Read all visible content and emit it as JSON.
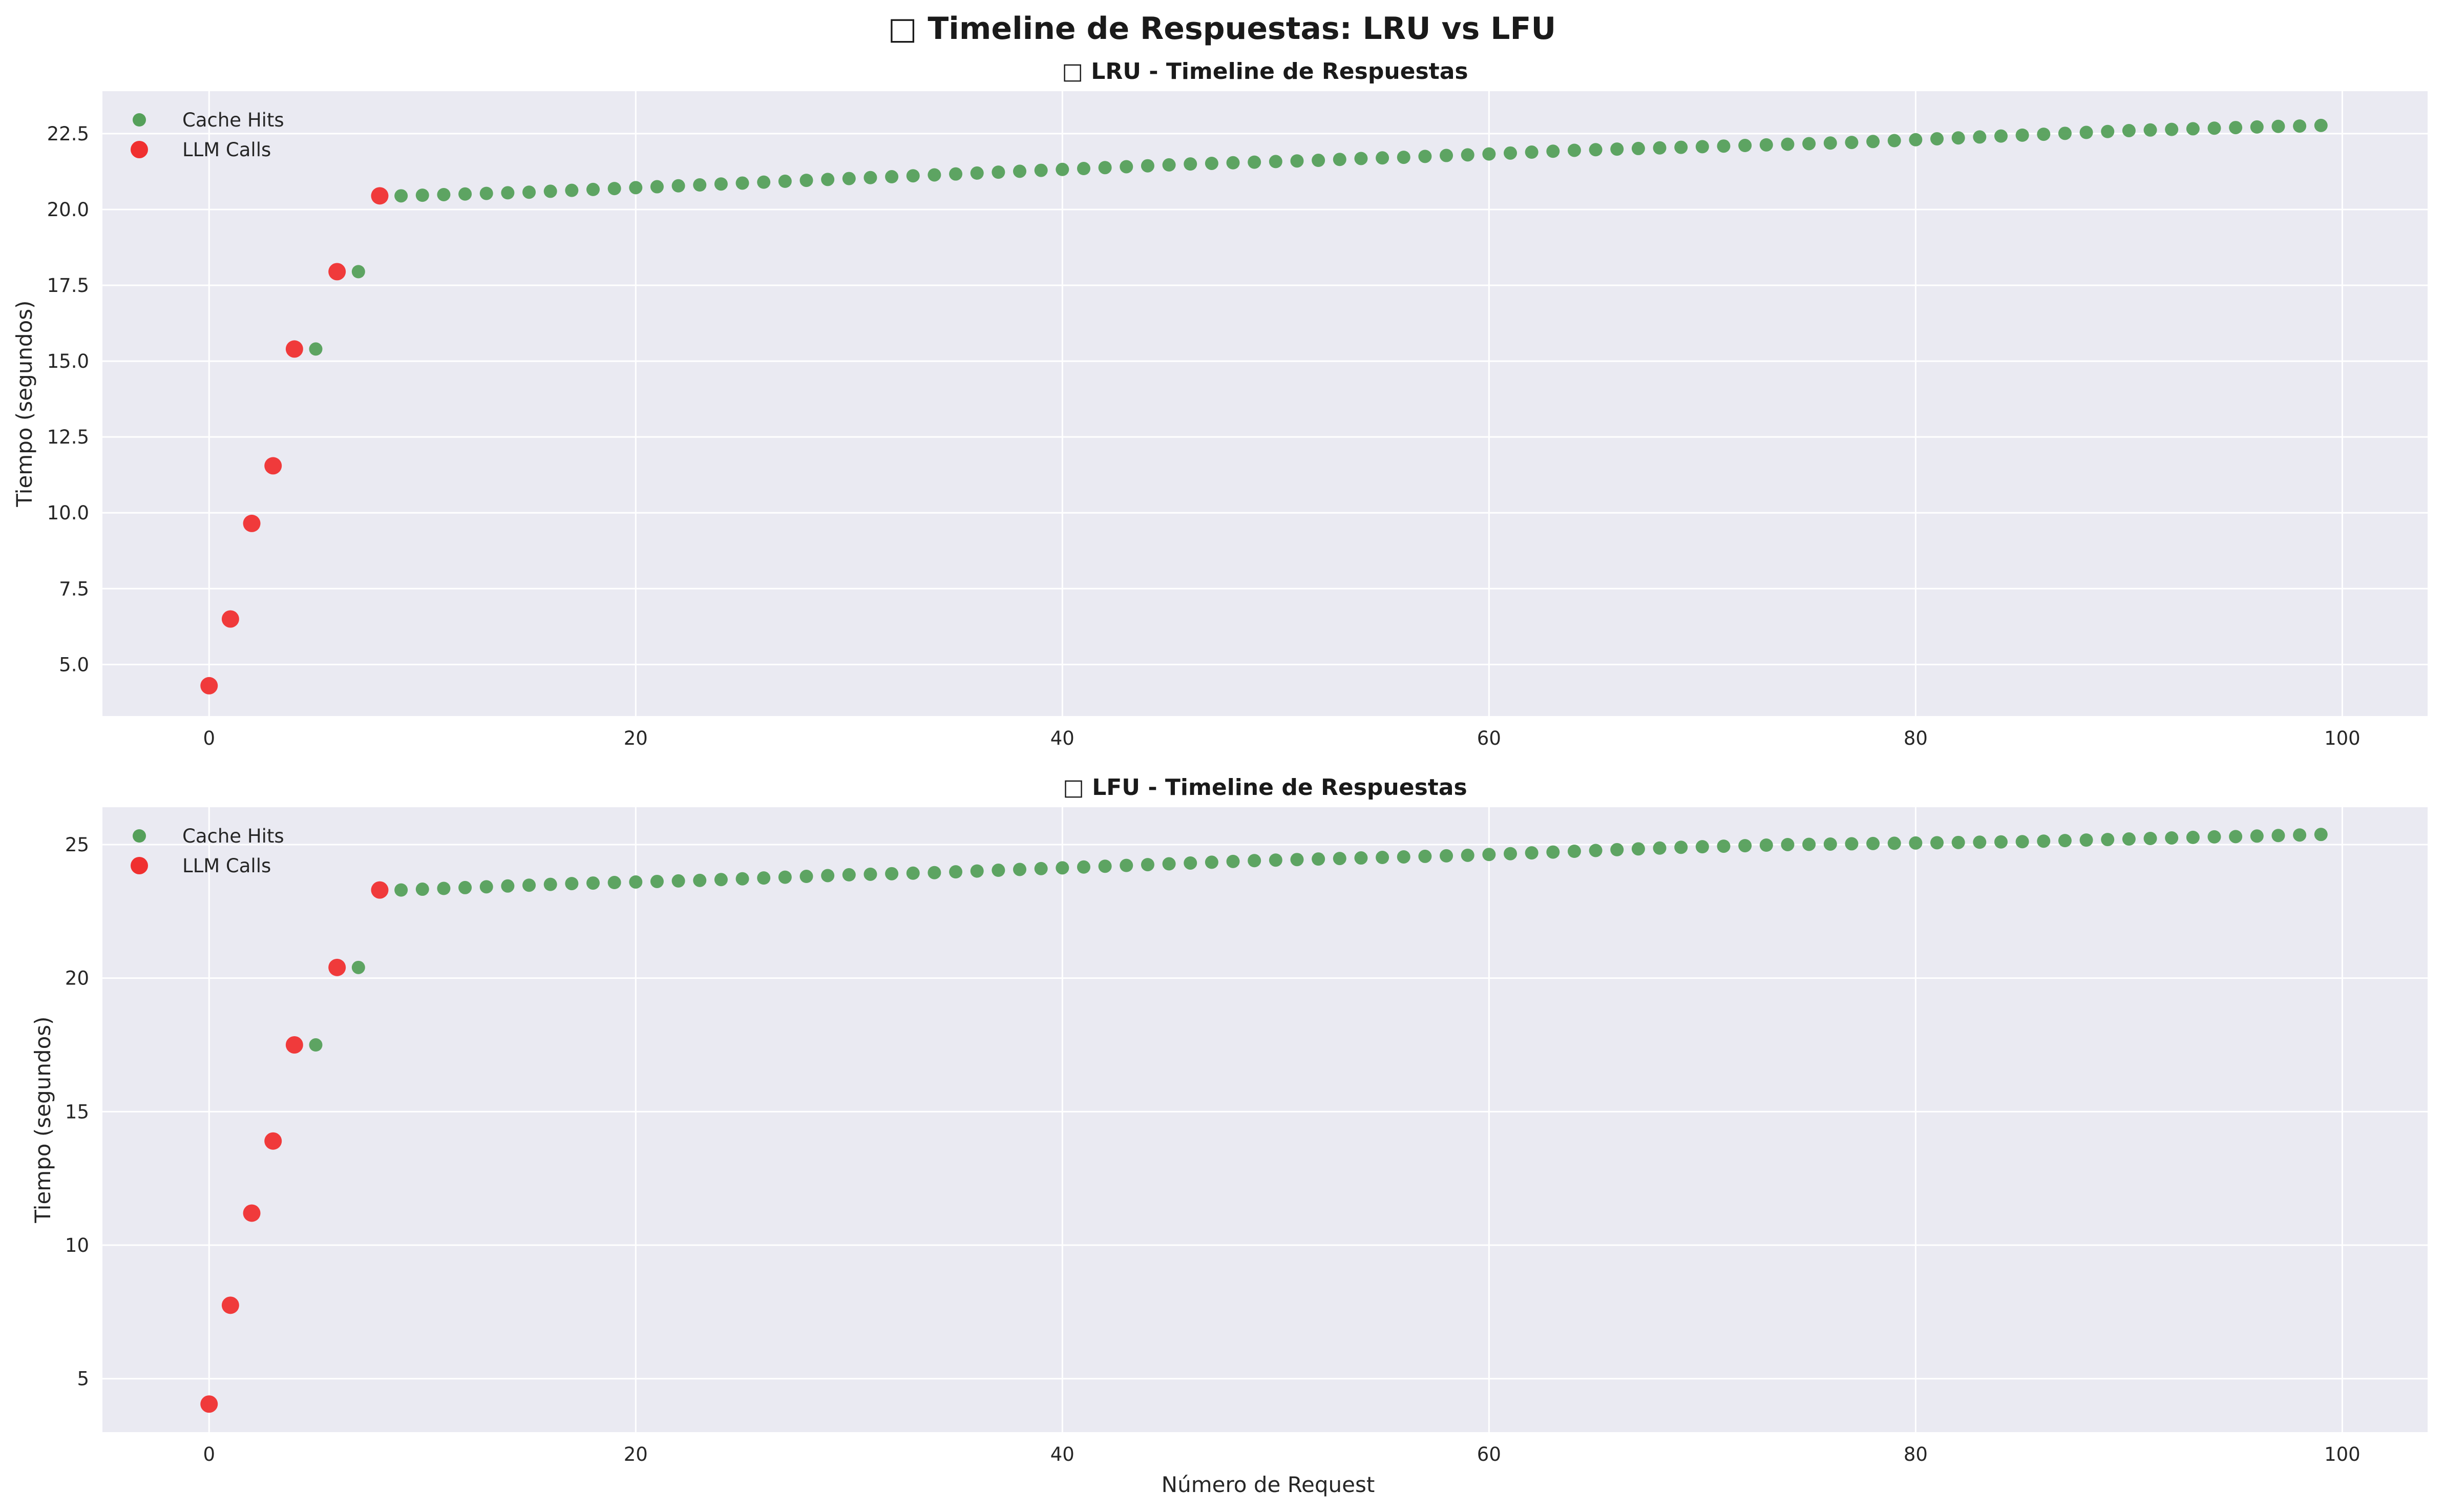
{
  "figure": {
    "suptitle": "□ Timeline de Respuestas: LRU vs LFU",
    "xlabel": "Número de Request"
  },
  "chart_data": [
    {
      "type": "scatter",
      "title": "□ LRU - Timeline de Respuestas",
      "xlabel": "",
      "ylabel": "Tiempo (segundos)",
      "xlim": [
        -5,
        104
      ],
      "ylim": [
        3.3,
        23.9
      ],
      "xticks": [
        "0",
        "20",
        "40",
        "60",
        "80",
        "100"
      ],
      "yticks": [
        "5.0",
        "7.5",
        "10.0",
        "12.5",
        "15.0",
        "17.5",
        "20.0",
        "22.5"
      ],
      "grid": true,
      "legend": "top-left",
      "series": [
        {
          "name": "Cache Hits",
          "color": "#55a05a",
          "points": [
            [
              5,
              15.4
            ],
            [
              7,
              17.95
            ],
            [
              9,
              20.45
            ],
            [
              10,
              20.47
            ],
            [
              11,
              20.49
            ],
            [
              12,
              20.51
            ],
            [
              13,
              20.53
            ],
            [
              14,
              20.55
            ],
            [
              15,
              20.57
            ],
            [
              16,
              20.6
            ],
            [
              17,
              20.63
            ],
            [
              18,
              20.66
            ],
            [
              19,
              20.69
            ],
            [
              20,
              20.72
            ],
            [
              21,
              20.75
            ],
            [
              22,
              20.78
            ],
            [
              23,
              20.81
            ],
            [
              24,
              20.84
            ],
            [
              25,
              20.87
            ],
            [
              26,
              20.9
            ],
            [
              27,
              20.93
            ],
            [
              28,
              20.96
            ],
            [
              29,
              20.99
            ],
            [
              30,
              21.02
            ],
            [
              31,
              21.05
            ],
            [
              32,
              21.08
            ],
            [
              33,
              21.11
            ],
            [
              34,
              21.14
            ],
            [
              35,
              21.17
            ],
            [
              36,
              21.2
            ],
            [
              37,
              21.23
            ],
            [
              38,
              21.26
            ],
            [
              39,
              21.29
            ],
            [
              40,
              21.32
            ],
            [
              41,
              21.35
            ],
            [
              42,
              21.38
            ],
            [
              43,
              21.41
            ],
            [
              44,
              21.44
            ],
            [
              45,
              21.47
            ],
            [
              46,
              21.5
            ],
            [
              47,
              21.52
            ],
            [
              48,
              21.54
            ],
            [
              49,
              21.56
            ],
            [
              50,
              21.58
            ],
            [
              51,
              21.6
            ],
            [
              52,
              21.62
            ],
            [
              53,
              21.65
            ],
            [
              54,
              21.68
            ],
            [
              55,
              21.7
            ],
            [
              56,
              21.72
            ],
            [
              57,
              21.75
            ],
            [
              58,
              21.78
            ],
            [
              59,
              21.8
            ],
            [
              60,
              21.83
            ],
            [
              61,
              21.86
            ],
            [
              62,
              21.89
            ],
            [
              63,
              21.92
            ],
            [
              64,
              21.95
            ],
            [
              65,
              21.97
            ],
            [
              66,
              21.99
            ],
            [
              67,
              22.01
            ],
            [
              68,
              22.03
            ],
            [
              69,
              22.05
            ],
            [
              70,
              22.07
            ],
            [
              71,
              22.09
            ],
            [
              72,
              22.11
            ],
            [
              73,
              22.13
            ],
            [
              74,
              22.15
            ],
            [
              75,
              22.17
            ],
            [
              76,
              22.19
            ],
            [
              77,
              22.21
            ],
            [
              78,
              22.24
            ],
            [
              79,
              22.27
            ],
            [
              80,
              22.3
            ],
            [
              81,
              22.33
            ],
            [
              82,
              22.36
            ],
            [
              83,
              22.39
            ],
            [
              84,
              22.42
            ],
            [
              85,
              22.45
            ],
            [
              86,
              22.48
            ],
            [
              87,
              22.51
            ],
            [
              88,
              22.54
            ],
            [
              89,
              22.57
            ],
            [
              90,
              22.6
            ],
            [
              91,
              22.62
            ],
            [
              92,
              22.64
            ],
            [
              93,
              22.66
            ],
            [
              94,
              22.68
            ],
            [
              95,
              22.7
            ],
            [
              96,
              22.72
            ],
            [
              97,
              22.74
            ],
            [
              98,
              22.75
            ],
            [
              99,
              22.77
            ]
          ]
        },
        {
          "name": "LLM Calls",
          "color": "#f03030",
          "points": [
            [
              0,
              4.3
            ],
            [
              1,
              6.5
            ],
            [
              2,
              9.65
            ],
            [
              3,
              11.55
            ],
            [
              4,
              15.4
            ],
            [
              6,
              17.95
            ],
            [
              8,
              20.45
            ]
          ]
        }
      ]
    },
    {
      "type": "scatter",
      "title": "□ LFU - Timeline de Respuestas",
      "xlabel": "Número de Request",
      "ylabel": "Tiempo (segundos)",
      "xlim": [
        -5,
        104
      ],
      "ylim": [
        3.0,
        26.4
      ],
      "xticks": [
        "0",
        "20",
        "40",
        "60",
        "80",
        "100"
      ],
      "yticks": [
        "5",
        "10",
        "15",
        "20",
        "25"
      ],
      "grid": true,
      "legend": "top-left",
      "series": [
        {
          "name": "Cache Hits",
          "color": "#55a05a",
          "points": [
            [
              5,
              17.5
            ],
            [
              7,
              20.4
            ],
            [
              9,
              23.3
            ],
            [
              10,
              23.33
            ],
            [
              11,
              23.36
            ],
            [
              12,
              23.39
            ],
            [
              13,
              23.42
            ],
            [
              14,
              23.45
            ],
            [
              15,
              23.48
            ],
            [
              16,
              23.51
            ],
            [
              17,
              23.54
            ],
            [
              18,
              23.56
            ],
            [
              19,
              23.58
            ],
            [
              20,
              23.6
            ],
            [
              21,
              23.62
            ],
            [
              22,
              23.64
            ],
            [
              23,
              23.66
            ],
            [
              24,
              23.69
            ],
            [
              25,
              23.72
            ],
            [
              26,
              23.75
            ],
            [
              27,
              23.78
            ],
            [
              28,
              23.81
            ],
            [
              29,
              23.84
            ],
            [
              30,
              23.87
            ],
            [
              31,
              23.89
            ],
            [
              32,
              23.91
            ],
            [
              33,
              23.93
            ],
            [
              34,
              23.95
            ],
            [
              35,
              23.98
            ],
            [
              36,
              24.01
            ],
            [
              37,
              24.04
            ],
            [
              38,
              24.07
            ],
            [
              39,
              24.1
            ],
            [
              40,
              24.13
            ],
            [
              41,
              24.16
            ],
            [
              42,
              24.19
            ],
            [
              43,
              24.22
            ],
            [
              44,
              24.25
            ],
            [
              45,
              24.28
            ],
            [
              46,
              24.31
            ],
            [
              47,
              24.34
            ],
            [
              48,
              24.37
            ],
            [
              49,
              24.4
            ],
            [
              50,
              24.42
            ],
            [
              51,
              24.44
            ],
            [
              52,
              24.46
            ],
            [
              53,
              24.48
            ],
            [
              54,
              24.5
            ],
            [
              55,
              24.52
            ],
            [
              56,
              24.54
            ],
            [
              57,
              24.56
            ],
            [
              58,
              24.58
            ],
            [
              59,
              24.6
            ],
            [
              60,
              24.63
            ],
            [
              61,
              24.66
            ],
            [
              62,
              24.69
            ],
            [
              63,
              24.72
            ],
            [
              64,
              24.75
            ],
            [
              65,
              24.78
            ],
            [
              66,
              24.81
            ],
            [
              67,
              24.84
            ],
            [
              68,
              24.87
            ],
            [
              69,
              24.9
            ],
            [
              70,
              24.92
            ],
            [
              71,
              24.94
            ],
            [
              72,
              24.96
            ],
            [
              73,
              24.98
            ],
            [
              74,
              25.0
            ],
            [
              75,
              25.01
            ],
            [
              76,
              25.02
            ],
            [
              77,
              25.03
            ],
            [
              78,
              25.04
            ],
            [
              79,
              25.05
            ],
            [
              80,
              25.06
            ],
            [
              81,
              25.07
            ],
            [
              82,
              25.08
            ],
            [
              83,
              25.09
            ],
            [
              84,
              25.1
            ],
            [
              85,
              25.11
            ],
            [
              86,
              25.13
            ],
            [
              87,
              25.15
            ],
            [
              88,
              25.17
            ],
            [
              89,
              25.19
            ],
            [
              90,
              25.21
            ],
            [
              91,
              25.23
            ],
            [
              92,
              25.25
            ],
            [
              93,
              25.27
            ],
            [
              94,
              25.29
            ],
            [
              95,
              25.3
            ],
            [
              96,
              25.32
            ],
            [
              97,
              25.34
            ],
            [
              98,
              25.36
            ],
            [
              99,
              25.38
            ]
          ]
        },
        {
          "name": "LLM Calls",
          "color": "#f03030",
          "points": [
            [
              0,
              4.05
            ],
            [
              1,
              7.75
            ],
            [
              2,
              11.2
            ],
            [
              3,
              13.9
            ],
            [
              4,
              17.5
            ],
            [
              6,
              20.4
            ],
            [
              8,
              23.3
            ]
          ]
        }
      ]
    }
  ]
}
